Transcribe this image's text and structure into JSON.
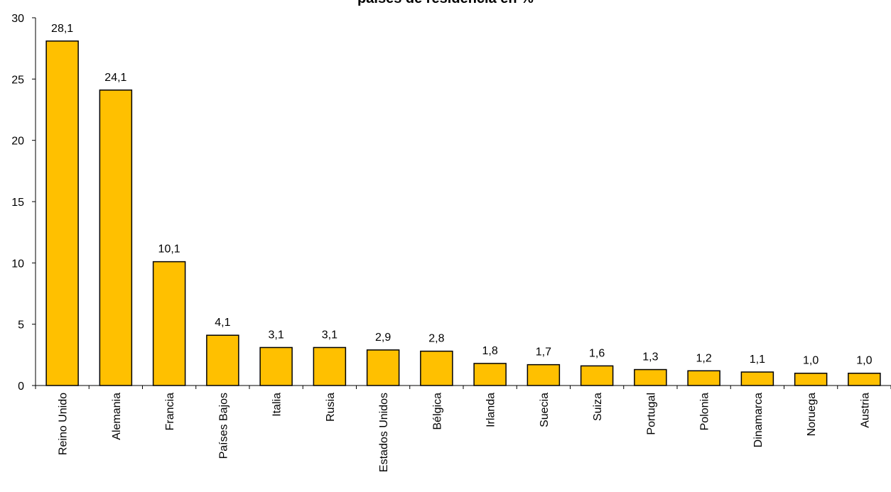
{
  "chart_data": {
    "type": "bar",
    "title": "países de residencia en %",
    "xlabel": "",
    "ylabel": "",
    "ylim": [
      0,
      30
    ],
    "yticks": [
      0,
      5,
      10,
      15,
      20,
      25,
      30
    ],
    "grid": false,
    "legend": "none",
    "bar_color": "#FFC000",
    "bar_edge_color": "#000000",
    "categories": [
      "Reino Unido",
      "Alemania",
      "Francia",
      "Países Bajos",
      "Italia",
      "Rusia",
      "Estados Unidos",
      "Bélgica",
      "Irlanda",
      "Suecia",
      "Suiza",
      "Portugal",
      "Polonia",
      "Dinamarca",
      "Noruega",
      "Austria"
    ],
    "values": [
      28.1,
      24.1,
      10.1,
      4.1,
      3.1,
      3.1,
      2.9,
      2.8,
      1.8,
      1.7,
      1.6,
      1.3,
      1.2,
      1.1,
      1.0,
      1.0
    ],
    "value_labels": [
      "28,1",
      "24,1",
      "10,1",
      "4,1",
      "3,1",
      "3,1",
      "2,9",
      "2,8",
      "1,8",
      "1,7",
      "1,6",
      "1,3",
      "1,2",
      "1,1",
      "1,0",
      "1,0"
    ]
  }
}
